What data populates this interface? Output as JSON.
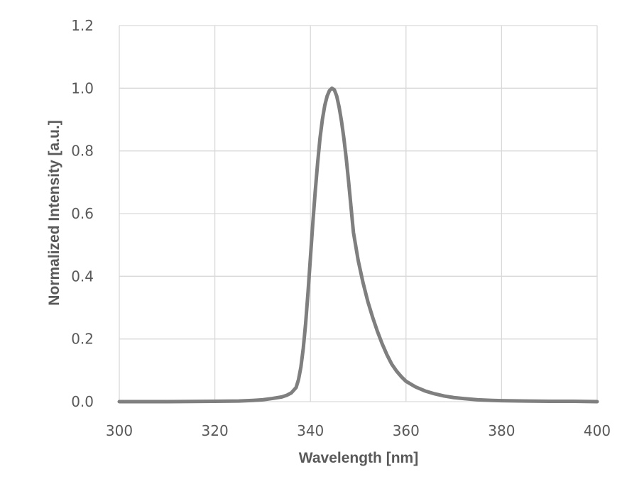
{
  "chart_data": {
    "type": "line",
    "title": "",
    "xlabel": "Wavelength [nm]",
    "ylabel": "Normalized Intensity [a.u.]",
    "xlim": [
      300,
      400
    ],
    "ylim": [
      0.0,
      1.2
    ],
    "x_ticks": [
      "300",
      "320",
      "340",
      "360",
      "380",
      "400"
    ],
    "y_ticks": [
      "0.0",
      "0.2",
      "0.4",
      "0.6",
      "0.8",
      "1.0",
      "1.2"
    ],
    "grid": true,
    "legend": "none",
    "line_color": "#7f7f7f",
    "series": [
      {
        "x": [
          300,
          310,
          320,
          325,
          328,
          330,
          332,
          334,
          335,
          336,
          337,
          337.5,
          338,
          338.5,
          339,
          339.5,
          340,
          340.5,
          341,
          341.5,
          342,
          342.5,
          343,
          343.5,
          344,
          344.5,
          345,
          345.5,
          346,
          346.5,
          347,
          347.5,
          348,
          348.5,
          349,
          350,
          351,
          352,
          353,
          354,
          355,
          356,
          357,
          358,
          359,
          360,
          362,
          364,
          366,
          368,
          370,
          372,
          375,
          378,
          380,
          385,
          390,
          395,
          400
        ],
        "y": [
          0.0,
          0.0,
          0.001,
          0.002,
          0.004,
          0.006,
          0.01,
          0.015,
          0.02,
          0.028,
          0.045,
          0.07,
          0.11,
          0.17,
          0.25,
          0.35,
          0.46,
          0.57,
          0.67,
          0.76,
          0.84,
          0.9,
          0.945,
          0.975,
          0.993,
          1.0,
          0.995,
          0.975,
          0.94,
          0.895,
          0.84,
          0.775,
          0.7,
          0.62,
          0.54,
          0.45,
          0.38,
          0.32,
          0.27,
          0.225,
          0.185,
          0.15,
          0.12,
          0.098,
          0.08,
          0.065,
          0.047,
          0.034,
          0.025,
          0.018,
          0.013,
          0.01,
          0.006,
          0.004,
          0.003,
          0.002,
          0.001,
          0.001,
          0.0
        ]
      }
    ]
  }
}
